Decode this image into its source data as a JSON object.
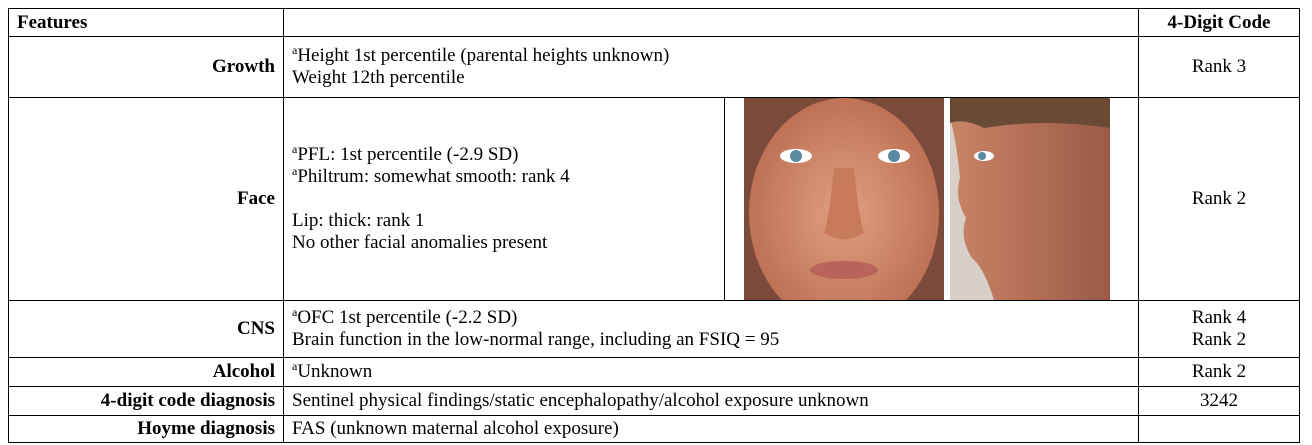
{
  "table": {
    "header": [
      "Features",
      "4-Digit Code"
    ],
    "rows": [
      {
        "feature": "Growth",
        "lines": [
          {
            "sup": "a",
            "text": "Height 1st percentile (parental heights unknown)"
          },
          {
            "text": "Weight 12th percentile"
          }
        ],
        "codes": [
          "Rank 3"
        ]
      },
      {
        "feature": "Face",
        "lines": [
          {
            "sup": "a",
            "text": "PFL: 1st percentile (-2.9 SD)"
          },
          {
            "sup": "a",
            "text": "Philtrum: somewhat smooth: rank 4"
          },
          {
            "text": "Lip: thick: rank 1"
          },
          {
            "text": "No other facial anomalies present"
          }
        ],
        "codes": [
          "Rank 2"
        ]
      },
      {
        "feature": "CNS",
        "lines": [
          {
            "sup": "a",
            "text": "OFC 1st percentile (-2.2 SD)"
          },
          {
            "text": "Brain function in the low-normal range, including an FSIQ = 95"
          }
        ],
        "codes": [
          "Rank 4",
          "Rank 2"
        ]
      },
      {
        "feature": "Alcohol",
        "lines": [
          {
            "sup": "a",
            "text": "Unknown"
          }
        ],
        "codes": [
          "Rank 2"
        ]
      },
      {
        "feature": "4-digit code diagnosis",
        "lines": [
          {
            "text": "Sentinel physical findings/static encephalopathy/alcohol exposure unknown"
          }
        ],
        "codes": [
          "3242"
        ]
      },
      {
        "feature": "Hoyme diagnosis",
        "lines": [
          {
            "text": "FAS (unknown maternal alcohol exposure)"
          }
        ]
      }
    ]
  }
}
